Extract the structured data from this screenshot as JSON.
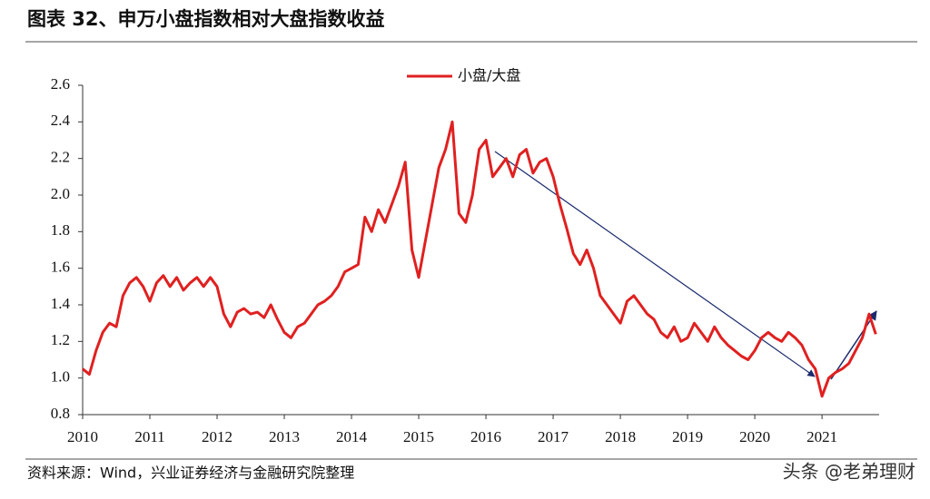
{
  "header": {
    "title": "图表 32、申万小盘指数相对大盘指数收益"
  },
  "chart_data": {
    "type": "line",
    "x": [
      2010.0,
      2010.1,
      2010.2,
      2010.3,
      2010.4,
      2010.5,
      2010.6,
      2010.7,
      2010.8,
      2010.9,
      2011.0,
      2011.1,
      2011.2,
      2011.3,
      2011.4,
      2011.5,
      2011.6,
      2011.7,
      2011.8,
      2011.9,
      2012.0,
      2012.1,
      2012.2,
      2012.3,
      2012.4,
      2012.5,
      2012.6,
      2012.7,
      2012.8,
      2012.9,
      2013.0,
      2013.1,
      2013.2,
      2013.3,
      2013.4,
      2013.5,
      2013.6,
      2013.7,
      2013.8,
      2013.9,
      2014.0,
      2014.1,
      2014.2,
      2014.3,
      2014.4,
      2014.5,
      2014.6,
      2014.7,
      2014.8,
      2014.9,
      2015.0,
      2015.1,
      2015.2,
      2015.3,
      2015.4,
      2015.5,
      2015.6,
      2015.7,
      2015.8,
      2015.9,
      2016.0,
      2016.1,
      2016.2,
      2016.3,
      2016.4,
      2016.5,
      2016.6,
      2016.7,
      2016.8,
      2016.9,
      2017.0,
      2017.1,
      2017.2,
      2017.3,
      2017.4,
      2017.5,
      2017.6,
      2017.7,
      2017.8,
      2017.9,
      2018.0,
      2018.1,
      2018.2,
      2018.3,
      2018.4,
      2018.5,
      2018.6,
      2018.7,
      2018.8,
      2018.9,
      2019.0,
      2019.1,
      2019.2,
      2019.3,
      2019.4,
      2019.5,
      2019.6,
      2019.7,
      2019.8,
      2019.9,
      2020.0,
      2020.1,
      2020.2,
      2020.3,
      2020.4,
      2020.5,
      2020.6,
      2020.7,
      2020.8,
      2020.9,
      2021.0,
      2021.1,
      2021.2,
      2021.3,
      2021.4,
      2021.5,
      2021.6,
      2021.7,
      2021.8
    ],
    "series": [
      {
        "name": "小盘/大盘",
        "color": "#e02020",
        "values": [
          1.05,
          1.02,
          1.15,
          1.25,
          1.3,
          1.28,
          1.45,
          1.52,
          1.55,
          1.5,
          1.42,
          1.52,
          1.56,
          1.5,
          1.55,
          1.48,
          1.52,
          1.55,
          1.5,
          1.55,
          1.5,
          1.35,
          1.28,
          1.36,
          1.38,
          1.35,
          1.36,
          1.33,
          1.4,
          1.32,
          1.25,
          1.22,
          1.28,
          1.3,
          1.35,
          1.4,
          1.42,
          1.45,
          1.5,
          1.58,
          1.6,
          1.62,
          1.88,
          1.8,
          1.92,
          1.85,
          1.95,
          2.05,
          2.18,
          1.7,
          1.55,
          1.75,
          1.95,
          2.15,
          2.25,
          2.4,
          1.9,
          1.85,
          2.0,
          2.25,
          2.3,
          2.1,
          2.15,
          2.2,
          2.1,
          2.22,
          2.25,
          2.12,
          2.18,
          2.2,
          2.1,
          1.95,
          1.82,
          1.68,
          1.62,
          1.7,
          1.6,
          1.45,
          1.4,
          1.35,
          1.3,
          1.42,
          1.45,
          1.4,
          1.35,
          1.32,
          1.25,
          1.22,
          1.28,
          1.2,
          1.22,
          1.3,
          1.25,
          1.2,
          1.28,
          1.22,
          1.18,
          1.15,
          1.12,
          1.1,
          1.15,
          1.22,
          1.25,
          1.22,
          1.2,
          1.25,
          1.22,
          1.18,
          1.1,
          1.05,
          0.9,
          1.0,
          1.03,
          1.05,
          1.08,
          1.15,
          1.22,
          1.35,
          1.24
        ]
      }
    ],
    "xlim": [
      2010,
      2021.85
    ],
    "xticks": [
      2010,
      2011,
      2012,
      2013,
      2014,
      2015,
      2016,
      2017,
      2018,
      2019,
      2020,
      2021
    ],
    "ylim": [
      0.8,
      2.6
    ],
    "yticks": [
      0.8,
      {
        "value": 1,
        "label": "1.0"
      },
      1.2,
      1.4,
      1.6,
      1.8,
      {
        "value": 2,
        "label": "2.0"
      },
      2.2,
      2.4,
      2.6
    ],
    "legend": "top"
  },
  "footer": {
    "source": "资料来源：Wind，兴业证券经济与金融研究院整理",
    "watermark": "头条 @老弟理财"
  }
}
